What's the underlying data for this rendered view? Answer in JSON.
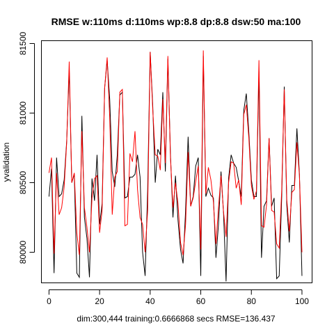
{
  "chart_data": {
    "type": "line",
    "title": "RMSE   w:110ms d:110ms wp:8.8 dp:8.8 dsw:50 ma:100",
    "xlabel": "dim:300,444 training:0.6666868 secs RMSE=136.437",
    "ylabel": "yvalidation",
    "xlim": [
      -3,
      104
    ],
    "ylim": [
      79780,
      81520
    ],
    "xticks": [
      0,
      20,
      40,
      60,
      80,
      100
    ],
    "yticks": [
      80000,
      80500,
      81000,
      81500
    ],
    "grid": false,
    "legend": "none",
    "series": [
      {
        "color": "#000000",
        "values": [
          80400,
          80600,
          79850,
          80680,
          80400,
          80420,
          80520,
          80800,
          81310,
          80500,
          80560,
          79850,
          79820,
          80980,
          80250,
          80100,
          79820,
          80530,
          80370,
          80700,
          80200,
          80350,
          81180,
          81380,
          81100,
          80580,
          80470,
          80700,
          81130,
          81150,
          80390,
          80400,
          80540,
          80540,
          80560,
          80700,
          80540,
          80000,
          79830,
          80440,
          81440,
          81060,
          80500,
          80740,
          80700,
          81150,
          80580,
          81390,
          80710,
          80250,
          80550,
          80230,
          80020,
          79920,
          80300,
          80830,
          80330,
          80400,
          80620,
          80680,
          79830,
          81410,
          80400,
          80460,
          80410,
          80390,
          79960,
          80200,
          80580,
          80280,
          79790,
          80530,
          80700,
          80640,
          80610,
          80510,
          80400,
          81020,
          81140,
          80860,
          80520,
          80400,
          80400,
          81300,
          79960,
          80330,
          80370,
          80820,
          80330,
          80390,
          79810,
          79830,
          80400,
          81190,
          80340,
          80070,
          80480,
          80480,
          80890,
          80560,
          79830
        ]
      },
      {
        "color": "#ff0000",
        "values": [
          80570,
          80680,
          79990,
          80570,
          80270,
          80320,
          80470,
          80790,
          81370,
          80500,
          80570,
          80140,
          79980,
          80870,
          80320,
          80180,
          80000,
          80390,
          80530,
          80550,
          80140,
          80300,
          81180,
          81400,
          80970,
          80270,
          80540,
          80580,
          81150,
          81170,
          80190,
          80200,
          80710,
          80650,
          80870,
          80450,
          80250,
          80200,
          80000,
          80300,
          81440,
          81030,
          80700,
          80690,
          80590,
          81100,
          80640,
          81410,
          80690,
          80320,
          80500,
          80350,
          80070,
          79980,
          80200,
          80720,
          80330,
          80390,
          80510,
          80620,
          80020,
          81450,
          80420,
          80610,
          80520,
          80360,
          80060,
          80320,
          80550,
          80290,
          80110,
          80500,
          80650,
          80640,
          80460,
          80520,
          80340,
          80990,
          81060,
          80820,
          80480,
          80380,
          80440,
          81380,
          80190,
          80180,
          80340,
          80820,
          80300,
          80290,
          80060,
          80030,
          80450,
          81170,
          80380,
          80150,
          80430,
          80450,
          80790,
          80550,
          80000
        ]
      }
    ]
  }
}
